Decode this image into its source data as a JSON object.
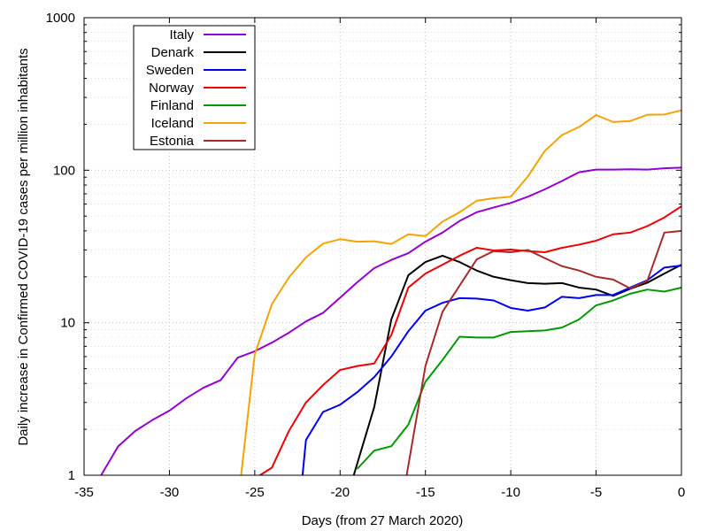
{
  "chart_data": {
    "type": "line",
    "title": "",
    "xlabel": "Days (from 27 March 2020)",
    "ylabel": "Daily increase in Confirmed COVID-19 cases per million inhabitants",
    "xlim": [
      -35,
      0
    ],
    "ylim": [
      1,
      1000
    ],
    "yscale": "log",
    "grid": true,
    "legend_position": "top-left",
    "x_ticks": [
      -35,
      -30,
      -25,
      -20,
      -15,
      -10,
      -5,
      0
    ],
    "x_tick_labels": [
      "-35",
      "-30",
      "-25",
      "-20",
      "-15",
      "-10",
      "-5",
      "0"
    ],
    "y_ticks": [
      1,
      10,
      100,
      1000
    ],
    "y_tick_labels": [
      "1",
      "10",
      "100",
      "1000"
    ],
    "series": [
      {
        "name": "Italy",
        "color": "#9400d3",
        "x": [
          -34,
          -33,
          -32,
          -31,
          -30,
          -29,
          -28,
          -27,
          -26,
          -25,
          -24,
          -23,
          -22,
          -21,
          -20,
          -19,
          -18,
          -17,
          -16,
          -15,
          -14,
          -13,
          -12,
          -11,
          -10,
          -9,
          -8,
          -7,
          -6,
          -5,
          -4,
          -3,
          -2,
          -1,
          0
        ],
        "y": [
          1.0,
          1.55,
          1.95,
          2.3,
          2.65,
          3.2,
          3.75,
          4.2,
          5.9,
          6.5,
          7.4,
          8.6,
          10.2,
          11.6,
          14.6,
          18.4,
          22.8,
          25.8,
          28.6,
          34.0,
          39.0,
          46.5,
          53.0,
          57.0,
          61.0,
          67.0,
          75.0,
          85.0,
          97.0,
          101.0,
          101.0,
          101.5,
          101.0,
          103.0,
          104.0
        ]
      },
      {
        "name": "Denark",
        "color": "#000000",
        "x": [
          -19.2,
          -18,
          -17,
          -16,
          -15,
          -14,
          -13,
          -12,
          -11,
          -10,
          -9,
          -8,
          -7,
          -6,
          -5,
          -4,
          -3,
          -2,
          -1,
          0
        ],
        "y": [
          1.0,
          2.8,
          10.5,
          20.5,
          25.0,
          27.5,
          25.0,
          22.0,
          20.0,
          19.0,
          18.2,
          18.0,
          18.2,
          17.0,
          16.5,
          15.0,
          16.7,
          18.3,
          21.0,
          24.0
        ]
      },
      {
        "name": "Sweden",
        "color": "#0000ee",
        "x": [
          -22.2,
          -22,
          -21,
          -20,
          -19,
          -18,
          -17,
          -16,
          -15,
          -14,
          -13,
          -12,
          -11,
          -10,
          -9,
          -8,
          -7,
          -6,
          -5,
          -4,
          -3,
          -2,
          -1,
          0
        ],
        "y": [
          1.0,
          1.7,
          2.6,
          2.9,
          3.5,
          4.4,
          6.0,
          8.8,
          12.0,
          13.5,
          14.5,
          14.4,
          14.0,
          12.5,
          12.0,
          12.6,
          14.8,
          14.5,
          15.2,
          15.2,
          17.0,
          19.0,
          23.0,
          23.7
        ]
      },
      {
        "name": "Norway",
        "color": "#ee0000",
        "x": [
          -24.7,
          -24,
          -23,
          -22,
          -21,
          -20,
          -19,
          -18,
          -17,
          -16,
          -15,
          -14,
          -13,
          -12,
          -11,
          -10,
          -9,
          -8,
          -7,
          -6,
          -5,
          -4,
          -3,
          -2,
          -1,
          0
        ],
        "y": [
          1.0,
          1.12,
          1.95,
          3.0,
          3.9,
          4.9,
          5.2,
          5.4,
          8.3,
          17.0,
          21.0,
          24.0,
          27.5,
          31.0,
          29.8,
          30.2,
          29.5,
          29.0,
          31.0,
          32.5,
          34.5,
          38.0,
          39.0,
          43.0,
          49.0,
          58.0
        ]
      },
      {
        "name": "Finland",
        "color": "#009900",
        "x": [
          -19,
          -18,
          -17,
          -16,
          -15,
          -14,
          -13,
          -12,
          -11,
          -10,
          -9,
          -8,
          -7,
          -6,
          -5,
          -4,
          -3,
          -2,
          -1,
          0
        ],
        "y": [
          1.1,
          1.45,
          1.55,
          2.15,
          4.1,
          5.7,
          8.1,
          8.0,
          8.0,
          8.7,
          8.8,
          8.9,
          9.3,
          10.5,
          13.0,
          14.0,
          15.5,
          16.5,
          16.0,
          17.0
        ]
      },
      {
        "name": "Iceland",
        "color": "#f5a300",
        "x": [
          -25.8,
          -25,
          -24,
          -23,
          -22,
          -21,
          -20,
          -19,
          -18,
          -17,
          -16,
          -15,
          -14,
          -13,
          -12,
          -11,
          -10,
          -9,
          -8,
          -7,
          -6,
          -5,
          -4,
          -3,
          -2,
          -1,
          0
        ],
        "y": [
          1.0,
          6.2,
          13.2,
          19.8,
          26.8,
          33.0,
          35.3,
          34.0,
          34.2,
          32.8,
          38.0,
          37.0,
          46.0,
          53.0,
          63.0,
          65.5,
          67.0,
          91.0,
          134.0,
          170.0,
          192.0,
          230.0,
          207.0,
          210.0,
          231.0,
          232.0,
          247.0
        ]
      },
      {
        "name": "Estonia",
        "color": "#a52a2a",
        "x": [
          -16.1,
          -15,
          -14,
          -13,
          -12,
          -11,
          -10,
          -9,
          -8,
          -7,
          -6,
          -5,
          -4,
          -3,
          -2,
          -1,
          0
        ],
        "y": [
          1.0,
          5.2,
          11.8,
          17.5,
          26.0,
          29.5,
          29.0,
          30.0,
          26.5,
          23.5,
          22.0,
          20.0,
          19.2,
          16.8,
          18.8,
          39.0,
          40.0
        ]
      }
    ]
  }
}
